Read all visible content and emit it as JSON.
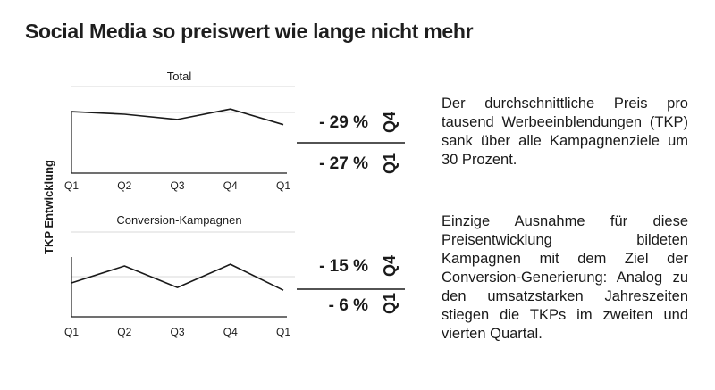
{
  "page": {
    "title": "Social Media so preiswert wie lange nicht mehr"
  },
  "chart_data": [
    {
      "type": "line",
      "title": "Total",
      "categories": [
        "Q1",
        "Q2",
        "Q3",
        "Q4",
        "Q1"
      ],
      "values": [
        71,
        68,
        62,
        74,
        56
      ],
      "ylim": [
        0,
        100
      ],
      "ylabel": "TKP Entwicklung",
      "changes": [
        {
          "value": "- 29 %",
          "quarter": "Q4"
        },
        {
          "value": "- 27 %",
          "quarter": "Q1"
        }
      ]
    },
    {
      "type": "line",
      "title": "Conversion-Kampagnen",
      "categories": [
        "Q1",
        "Q2",
        "Q3",
        "Q4",
        "Q1"
      ],
      "values": [
        60,
        90,
        52,
        93,
        47
      ],
      "ylim": [
        0,
        150
      ],
      "ylabel": "TKP Entwicklung",
      "changes": [
        {
          "value": "- 15 %",
          "quarter": "Q4"
        },
        {
          "value": "- 6 %",
          "quarter": "Q1"
        }
      ]
    }
  ],
  "text": {
    "paragraph1": "Der durchschnittliche Preis pro tausend Werbeein­blendungen (TKP) sank über alle Kampagnenziele um 30 Prozent.",
    "paragraph2": "Einzige Ausnahme für diese Preisentwicklung bildeten Kampagnen mit dem Ziel der Conversion-Generierung: Analog zu den umsatzstarken Jahreszeiten stiegen die TKPs im zweiten und vierten Quartal."
  },
  "colors": {
    "line": "#1a1a1a",
    "grid": "#d9d9d9",
    "text": "#1a1a1a"
  }
}
